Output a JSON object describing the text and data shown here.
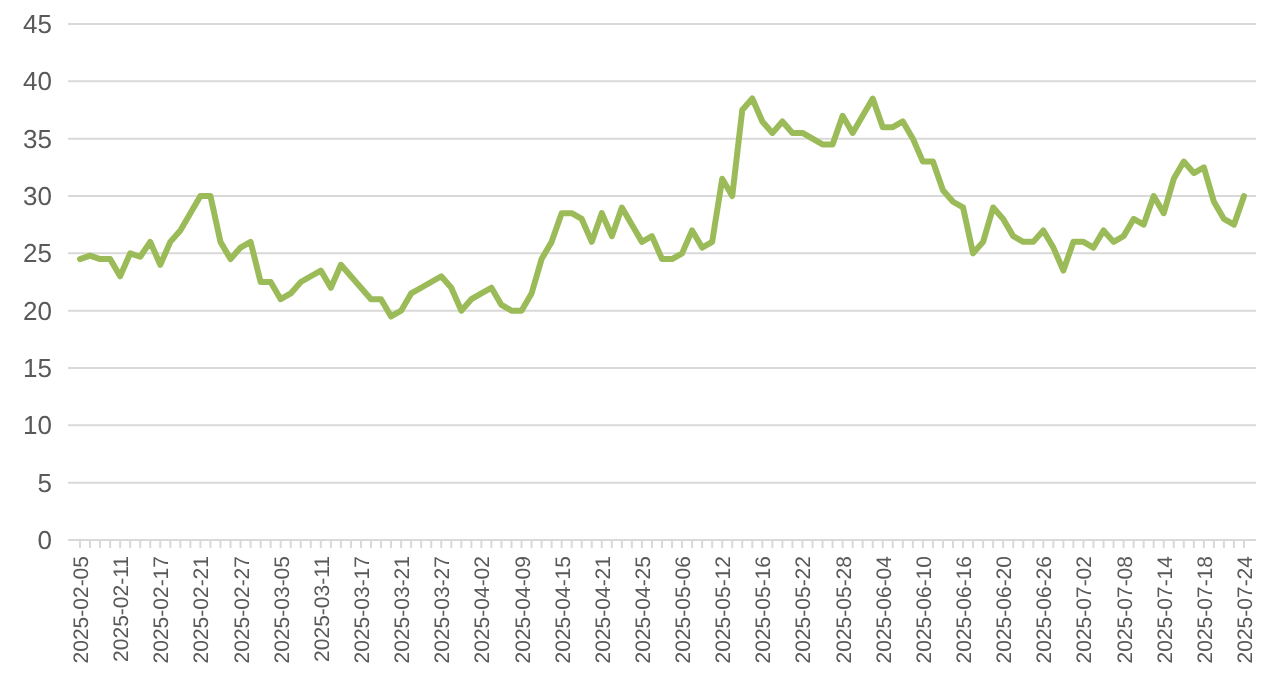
{
  "chart_data": {
    "type": "line",
    "categories": [
      "2025-02-05",
      null,
      null,
      null,
      "2025-02-11",
      null,
      null,
      null,
      "2025-02-17",
      null,
      null,
      null,
      "2025-02-21",
      null,
      null,
      null,
      "2025-02-27",
      null,
      null,
      null,
      "2025-03-05",
      null,
      null,
      null,
      "2025-03-11",
      null,
      null,
      null,
      "2025-03-17",
      null,
      null,
      null,
      "2025-03-21",
      null,
      null,
      null,
      "2025-03-27",
      null,
      null,
      null,
      "2025-04-02",
      null,
      null,
      null,
      "2025-04-09",
      null,
      null,
      null,
      "2025-04-15",
      null,
      null,
      null,
      "2025-04-21",
      null,
      null,
      null,
      "2025-04-25",
      null,
      null,
      null,
      "2025-05-06",
      null,
      null,
      null,
      "2025-05-12",
      null,
      null,
      null,
      "2025-05-16",
      null,
      null,
      null,
      "2025-05-22",
      null,
      null,
      null,
      "2025-05-28",
      null,
      null,
      null,
      "2025-06-04",
      null,
      null,
      null,
      "2025-06-10",
      null,
      null,
      null,
      "2025-06-16",
      null,
      null,
      null,
      "2025-06-20",
      null,
      null,
      null,
      "2025-06-26",
      null,
      null,
      null,
      "2025-07-02",
      null,
      null,
      null,
      "2025-07-08",
      null,
      null,
      null,
      "2025-07-14",
      null,
      null,
      null,
      "2025-07-18",
      null,
      null,
      null,
      "2025-07-24"
    ],
    "series": [
      {
        "color": "#9bbb59",
        "values": [
          24.5,
          24.8,
          24.5,
          24.5,
          23,
          25,
          24.7,
          26,
          24,
          26,
          27,
          28.5,
          30,
          30,
          26,
          24.5,
          25.5,
          26,
          22.5,
          22.5,
          21,
          21.5,
          22.5,
          23,
          23.5,
          22,
          24,
          23,
          22,
          21,
          21,
          19.5,
          20,
          21.5,
          22,
          22.5,
          23,
          22,
          20,
          21,
          21.5,
          22,
          20.5,
          20,
          20,
          21.5,
          24.5,
          26,
          28.5,
          28.5,
          28,
          26,
          28.5,
          26.5,
          29,
          27.5,
          26,
          26.5,
          24.5,
          24.5,
          25,
          27,
          25.5,
          26,
          31.5,
          30,
          37.5,
          38.5,
          36.5,
          35.5,
          36.5,
          35.5,
          35.5,
          35,
          34.5,
          34.5,
          37,
          35.5,
          37,
          38.5,
          36,
          36,
          36.5,
          35,
          33,
          33,
          30.5,
          29.5,
          29,
          25,
          26,
          29,
          28,
          26.5,
          26,
          26,
          27,
          25.5,
          23.5,
          26,
          26,
          25.5,
          27,
          26,
          26.5,
          28,
          27.5,
          30,
          28.5,
          31.5,
          33,
          32,
          32.5,
          29.5,
          28,
          27.5,
          30
        ]
      }
    ],
    "ylim": [
      0,
      45
    ],
    "yticks": [
      0,
      5,
      10,
      15,
      20,
      25,
      30,
      35,
      40,
      45
    ],
    "grid": "y",
    "marker": "none",
    "line_style": "solid"
  }
}
